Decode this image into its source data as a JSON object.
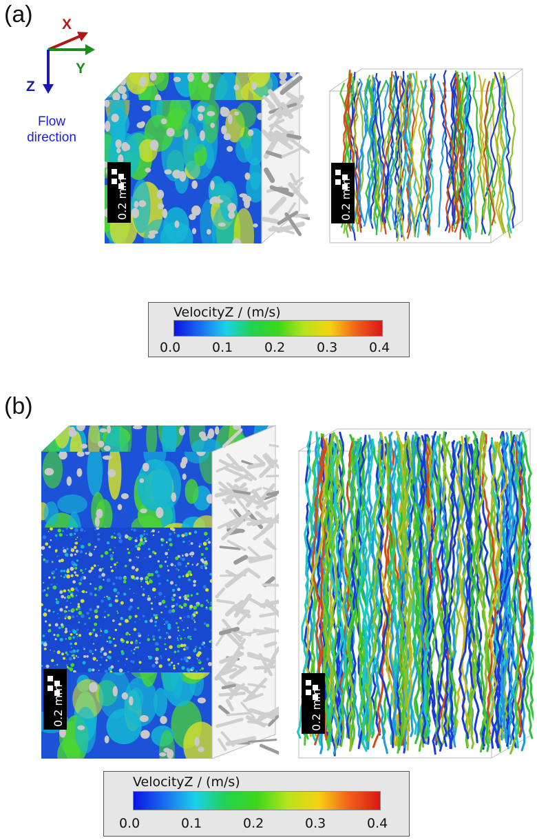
{
  "panels": [
    {
      "label": "(a)"
    },
    {
      "label": "(b)"
    }
  ],
  "axes": {
    "x_label": "X",
    "y_label": "Y",
    "z_label": "Z",
    "flow_line1": "Flow",
    "flow_line2": "direction",
    "colors": {
      "x": "#b01818",
      "y": "#1e8a1e",
      "z": "#1a1ab0"
    }
  },
  "scale_bar": {
    "label": "0.2 mm"
  },
  "colorbar": {
    "title": "VelocityZ / (m/s)",
    "ticks": [
      "0.0",
      "0.1",
      "0.2",
      "0.3",
      "0.4"
    ],
    "range": [
      0.0,
      0.4
    ],
    "gradient": [
      "#0a14e6",
      "#1a6cf0",
      "#19d2ea",
      "#22d24e",
      "#3dd61c",
      "#b6e41c",
      "#f5d212",
      "#f2601a",
      "#d81818"
    ]
  },
  "volume_colors": {
    "background": "#1b52d8",
    "mid": "#14b7d4",
    "high": "#4bd632",
    "peak": "#d6e02a",
    "solid": "#c9c9c9"
  }
}
